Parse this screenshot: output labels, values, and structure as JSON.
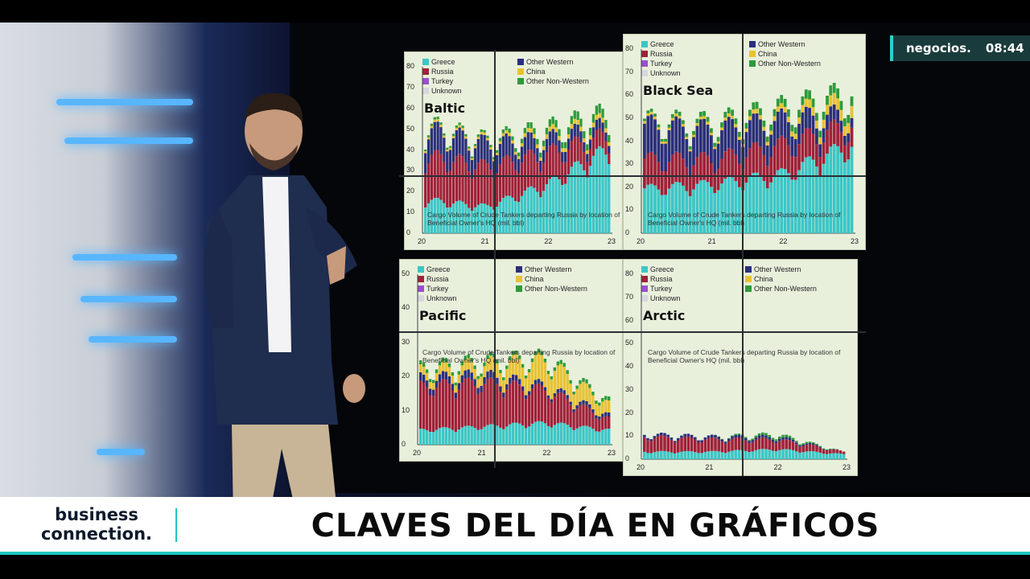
{
  "channel_logo": {
    "name": "negocios.",
    "time": "08:44"
  },
  "lower_third": {
    "brand_line1": "business",
    "brand_line2": "connection.",
    "headline": "CLAVES DEL DÍA EN GRÁFICOS"
  },
  "colors": {
    "greece": "#3cc6c6",
    "russia": "#a0213a",
    "turkey": "#9b4ed1",
    "unknown": "#d5d8dc",
    "other_western": "#2b2f7a",
    "china": "#e8c233",
    "other_non_western": "#2e9a3a",
    "teal_accent": "#1ec7c0"
  },
  "legend_left": [
    "Greece",
    "Russia",
    "Turkey",
    "Unknown"
  ],
  "legend_right": [
    "Other Western",
    "China",
    "Other Non-Western"
  ],
  "charts": [
    {
      "title": "Baltic",
      "yticks": [
        "80",
        "70",
        "60",
        "50",
        "40",
        "30",
        "20",
        "10",
        "0"
      ],
      "xticks": [
        "20",
        "21",
        "22",
        "23"
      ],
      "caption": "Cargo Volume of Crude Tankers departing Russia by location of Beneficial Owner's HQ (mil. bbl)"
    },
    {
      "title": "Black Sea",
      "yticks": [
        "80",
        "70",
        "60",
        "50",
        "40",
        "30",
        "20",
        "10",
        "0"
      ],
      "xticks": [
        "20",
        "21",
        "22",
        "23"
      ],
      "caption": "Cargo Volume of Crude Tankers departing Russia by location of Beneficial Owner's HQ (mil. bbl)"
    },
    {
      "title": "Pacific",
      "yticks": [
        "50",
        "40",
        "30",
        "20",
        "10",
        "0"
      ],
      "xticks": [
        "20",
        "21",
        "22",
        "23"
      ],
      "caption": "Cargo Volume of Crude Tankers departing Russia by location of Beneficial Owner's HQ (mil. bbl)"
    },
    {
      "title": "Arctic",
      "yticks": [
        "80",
        "70",
        "60",
        "50",
        "40",
        "30",
        "20",
        "10",
        "0"
      ],
      "xticks": [
        "20",
        "21",
        "22",
        "23"
      ],
      "caption": "Cargo Volume of Crude Tankers departing Russia by location of Beneficial Owner's HQ (mil. bbl)"
    }
  ],
  "chart_data": [
    {
      "type": "bar",
      "title": "Baltic",
      "ylim": [
        0,
        80
      ],
      "x": [
        "20",
        "21",
        "22",
        "23"
      ],
      "series": [
        {
          "name": "Greece",
          "values": [
            15,
            12,
            22,
            38
          ]
        },
        {
          "name": "Russia",
          "values": [
            20,
            18,
            14,
            6
          ]
        },
        {
          "name": "Other Western",
          "values": [
            12,
            10,
            6,
            4
          ]
        },
        {
          "name": "China",
          "values": [
            1,
            1,
            2,
            2
          ]
        },
        {
          "name": "Other Non-Western",
          "values": [
            1,
            1,
            3,
            4
          ]
        }
      ]
    },
    {
      "type": "bar",
      "title": "Black Sea",
      "ylim": [
        0,
        80
      ],
      "x": [
        "20",
        "21",
        "22",
        "23"
      ],
      "series": [
        {
          "name": "Greece",
          "values": [
            18,
            20,
            24,
            36
          ]
        },
        {
          "name": "Russia",
          "values": [
            12,
            10,
            12,
            8
          ]
        },
        {
          "name": "Other Western",
          "values": [
            14,
            12,
            10,
            4
          ]
        },
        {
          "name": "China",
          "values": [
            1,
            1,
            2,
            5
          ]
        },
        {
          "name": "Other Non-Western",
          "values": [
            1,
            2,
            3,
            4
          ]
        }
      ]
    },
    {
      "type": "bar",
      "title": "Pacific",
      "ylim": [
        0,
        50
      ],
      "x": [
        "20",
        "21",
        "22",
        "23"
      ],
      "series": [
        {
          "name": "Greece",
          "values": [
            4,
            5,
            6,
            4
          ]
        },
        {
          "name": "Russia",
          "values": [
            12,
            12,
            9,
            3
          ]
        },
        {
          "name": "Other Western",
          "values": [
            2,
            2,
            1,
            1
          ]
        },
        {
          "name": "China",
          "values": [
            2,
            3,
            7,
            3
          ]
        },
        {
          "name": "Other Non-Western",
          "values": [
            1,
            1,
            1,
            1
          ]
        }
      ]
    },
    {
      "type": "bar",
      "title": "Arctic",
      "ylim": [
        0,
        80
      ],
      "x": [
        "20",
        "21",
        "22",
        "23"
      ],
      "series": [
        {
          "name": "Greece",
          "values": [
            3,
            3,
            4,
            2
          ]
        },
        {
          "name": "Russia",
          "values": [
            6,
            5,
            4,
            1
          ]
        },
        {
          "name": "Other Western",
          "values": [
            1,
            1,
            1,
            0
          ]
        },
        {
          "name": "China",
          "values": [
            0,
            0,
            0,
            0
          ]
        },
        {
          "name": "Other Non-Western",
          "values": [
            0,
            0,
            1,
            0
          ]
        }
      ]
    }
  ]
}
